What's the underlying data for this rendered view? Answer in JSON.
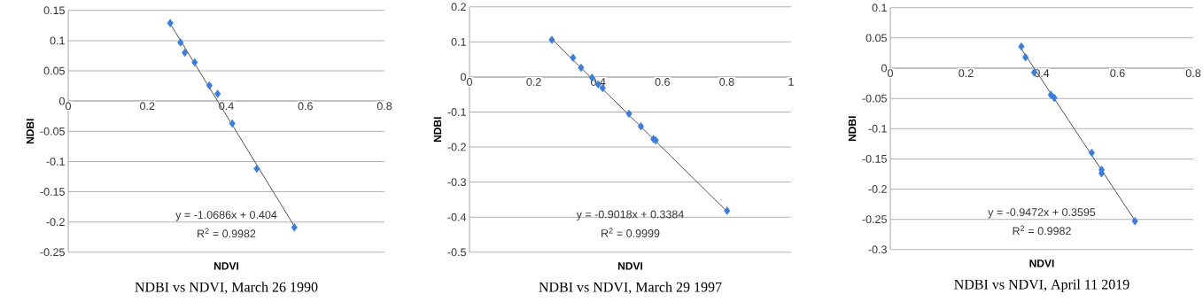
{
  "chart_data": [
    {
      "type": "scatter",
      "title": "NDBI vs NDVI, March 26 1990",
      "xlabel": "NDVI",
      "ylabel": "NDBI",
      "xlim": [
        0,
        0.8
      ],
      "xticks": [
        0,
        0.2,
        0.4,
        0.6,
        0.8
      ],
      "ylim": [
        -0.25,
        0.15
      ],
      "yticks": [
        -0.25,
        -0.2,
        -0.15,
        -0.1,
        -0.05,
        0,
        0.05,
        0.1,
        0.15
      ],
      "grid": "y",
      "series": [
        {
          "marker": "diamond",
          "color": "#3b7dd8",
          "x": [
            0.258,
            0.284,
            0.295,
            0.32,
            0.357,
            0.378,
            0.415,
            0.477,
            0.572
          ],
          "values": [
            0.129,
            0.097,
            0.08,
            0.064,
            0.026,
            0.012,
            -0.037,
            -0.112,
            -0.209
          ]
        },
        {
          "type": "line",
          "color": "#404040",
          "x": [
            0.258,
            0.572
          ],
          "values": [
            0.128,
            -0.207
          ]
        }
      ],
      "annotations": [
        "y = -1.0686x + 0.404",
        "R$^{2}$ = 0.9982"
      ]
    },
    {
      "type": "scatter",
      "title": "NDBI vs NDVI, March 29 1997",
      "xlabel": "NDVI",
      "ylabel": "NDBI",
      "xlim": [
        0,
        1
      ],
      "xticks": [
        0,
        0.2,
        0.4,
        0.6,
        0.8,
        1
      ],
      "ylim": [
        -0.5,
        0.2
      ],
      "yticks": [
        -0.5,
        -0.4,
        -0.3,
        -0.2,
        -0.1,
        0,
        0.1,
        0.2
      ],
      "grid": "y",
      "series": [
        {
          "marker": "diamond",
          "color": "#3b7dd8",
          "x": [
            0.256,
            0.322,
            0.347,
            0.381,
            0.4,
            0.414,
            0.496,
            0.533,
            0.572,
            0.579,
            0.801
          ],
          "values": [
            0.106,
            0.055,
            0.026,
            -0.002,
            -0.021,
            -0.032,
            -0.105,
            -0.141,
            -0.177,
            -0.181,
            -0.382
          ]
        },
        {
          "type": "line",
          "color": "#404040",
          "x": [
            0.256,
            0.801
          ],
          "values": [
            0.108,
            -0.384
          ]
        }
      ],
      "annotations": [
        "y = -0.9018x + 0.3384",
        "R$^{2}$ = 0.9999"
      ]
    },
    {
      "type": "scatter",
      "title": "NDBI vs NDVI, April 11 2019",
      "xlabel": "NDVI",
      "ylabel": "NDBI",
      "xlim": [
        0,
        0.8
      ],
      "xticks": [
        0,
        0.2,
        0.4,
        0.6,
        0.8
      ],
      "ylim": [
        -0.3,
        0.1
      ],
      "yticks": [
        -0.3,
        -0.25,
        -0.2,
        -0.15,
        -0.1,
        -0.05,
        0,
        0.05,
        0.1
      ],
      "grid": "y",
      "series": [
        {
          "marker": "diamond",
          "color": "#3b7dd8",
          "x": [
            0.346,
            0.357,
            0.38,
            0.424,
            0.433,
            0.532,
            0.558,
            0.558,
            0.646
          ],
          "values": [
            0.036,
            0.018,
            -0.007,
            -0.044,
            -0.049,
            -0.14,
            -0.168,
            -0.174,
            -0.253
          ]
        },
        {
          "type": "line",
          "color": "#404040",
          "x": [
            0.346,
            0.646
          ],
          "values": [
            0.032,
            -0.252
          ]
        }
      ],
      "annotations": [
        "y = -0.9472x + 0.3595",
        "R$^{2}$ = 0.9982"
      ]
    }
  ]
}
